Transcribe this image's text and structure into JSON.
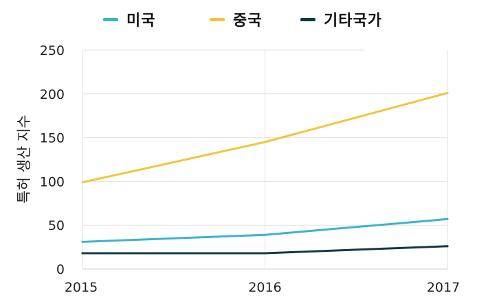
{
  "chart_data": {
    "type": "line",
    "title": "",
    "xlabel": "",
    "ylabel": "특허 생산 지수",
    "categories": [
      "2015",
      "2016",
      "2017"
    ],
    "ylim": [
      0,
      250
    ],
    "yticks": [
      0,
      50,
      100,
      150,
      200,
      250
    ],
    "grid": true,
    "legend_position": "top",
    "series": [
      {
        "name": "미국",
        "color": "#3ab4cc",
        "values": [
          31,
          39,
          57
        ]
      },
      {
        "name": "중국",
        "color": "#f2c53d",
        "values": [
          99,
          145,
          201
        ]
      },
      {
        "name": "기타국가",
        "color": "#0f3a44",
        "values": [
          18,
          18,
          26
        ]
      }
    ]
  }
}
